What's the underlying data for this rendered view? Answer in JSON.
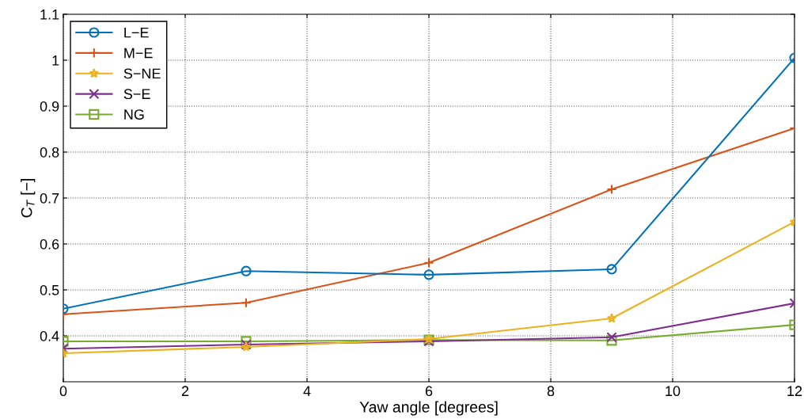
{
  "chart_data": {
    "type": "line",
    "xlabel": "Yaw angle [degrees]",
    "ylabel": "C$_{T}$ [−]",
    "x": [
      0,
      3,
      6,
      9,
      12
    ],
    "series": [
      {
        "name": "L−E",
        "color": "#0072bd",
        "marker": "circle",
        "values": [
          0.459,
          0.541,
          0.533,
          0.545,
          1.005
        ]
      },
      {
        "name": "M−E",
        "color": "#d95319",
        "marker": "plus",
        "values": [
          0.447,
          0.472,
          0.559,
          0.719,
          0.852
        ]
      },
      {
        "name": "S−NE",
        "color": "#edb120",
        "marker": "star",
        "values": [
          0.362,
          0.376,
          0.393,
          0.438,
          0.648
        ]
      },
      {
        "name": "S−E",
        "color": "#7e2f8e",
        "marker": "cross",
        "values": [
          0.372,
          0.381,
          0.388,
          0.397,
          0.471
        ]
      },
      {
        "name": "NG",
        "color": "#77ac30",
        "marker": "square",
        "values": [
          0.388,
          0.388,
          0.391,
          0.39,
          0.424
        ]
      }
    ],
    "xlim": [
      0,
      12
    ],
    "xticks": [
      0,
      2,
      4,
      6,
      8,
      10,
      12
    ],
    "ylim": [
      0.3,
      1.1
    ],
    "yticks": [
      0.4,
      0.5,
      0.6,
      0.7,
      0.8,
      0.9,
      1,
      1.1
    ],
    "grid": true,
    "legend": "top left",
    "line_style": "solid"
  }
}
